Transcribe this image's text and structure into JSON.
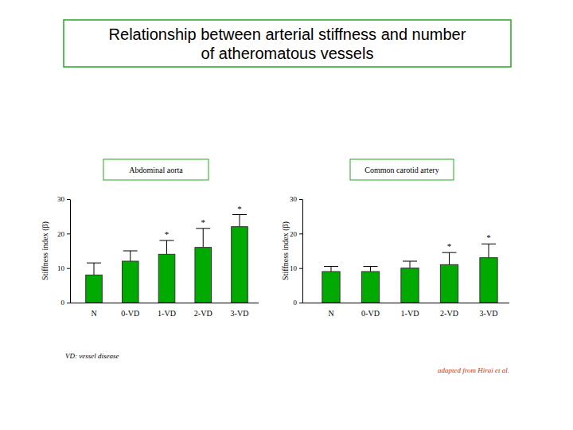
{
  "title": "Relationship between arterial stiffness and number of atheromatous vessels",
  "footnote": "VD: vessel disease",
  "source": "adapted from Hirai et al.",
  "chart_data": [
    {
      "type": "bar",
      "title": "Abdominal aorta",
      "y_label": "Stiffness index (β)",
      "categories": [
        "N",
        "0-VD",
        "1-VD",
        "2-VD",
        "3-VD"
      ],
      "values": [
        8,
        12,
        14,
        16,
        22
      ],
      "errors": [
        3.5,
        3,
        4,
        5.5,
        3.5
      ],
      "color": "#00aa00",
      "ylim": [
        0,
        30
      ],
      "yticks": [
        0,
        10,
        20,
        30
      ],
      "grid": false,
      "annotations": [
        {
          "text": "*",
          "category": "1-VD"
        },
        {
          "text": "*",
          "category": "2-VD"
        },
        {
          "text": "*",
          "category": "3-VD"
        }
      ]
    },
    {
      "type": "bar",
      "title": "Common carotid artery",
      "y_label": "Stiffness index (β)",
      "categories": [
        "N",
        "0-VD",
        "1-VD",
        "2-VD",
        "3-VD"
      ],
      "values": [
        9,
        9,
        10,
        11,
        13
      ],
      "errors": [
        1.5,
        1.5,
        2,
        3.5,
        4
      ],
      "color": "#00aa00",
      "ylim": [
        0,
        30
      ],
      "yticks": [
        0,
        10,
        20,
        30
      ],
      "grid": false,
      "annotations": [
        {
          "text": "*",
          "category": "2-VD"
        },
        {
          "text": "*",
          "category": "3-VD"
        }
      ]
    }
  ]
}
